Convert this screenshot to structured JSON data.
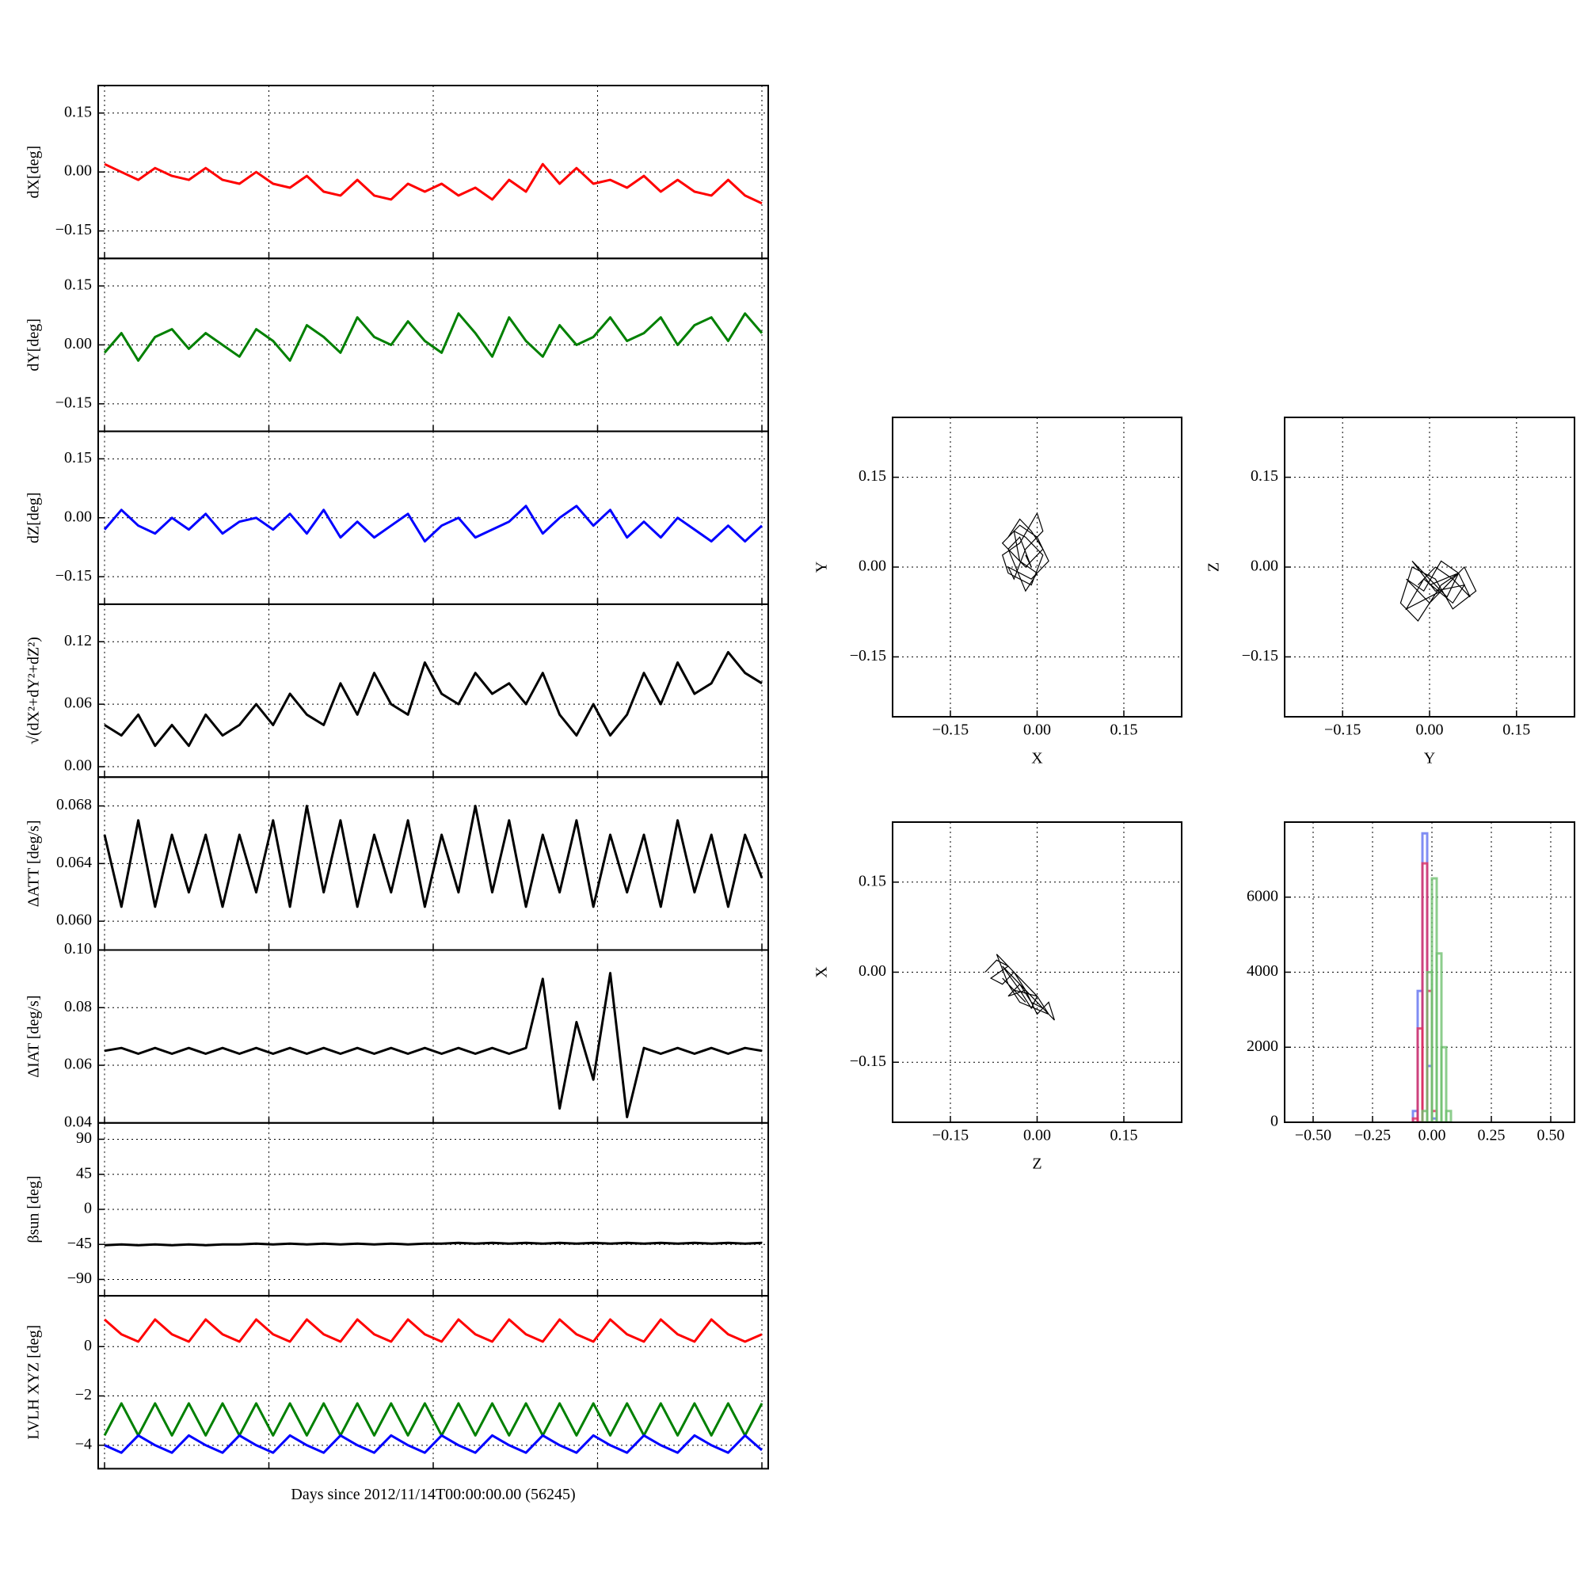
{
  "chart_data": [
    {
      "type": "line",
      "ylabel": "dX[deg]",
      "ylim": [
        -0.22,
        0.22
      ],
      "yticks": [
        {
          "value": -0.15,
          "label": "−0.15"
        },
        {
          "value": 0,
          "label": "0.00"
        },
        0.15
      ],
      "grid": true,
      "series": [
        {
          "color": "#ff0000",
          "values": [
            0.02,
            0.0,
            -0.02,
            0.01,
            -0.01,
            -0.02,
            0.01,
            -0.02,
            -0.03,
            0.0,
            -0.03,
            -0.04,
            -0.01,
            -0.05,
            -0.06,
            -0.02,
            -0.06,
            -0.07,
            -0.03,
            -0.05,
            -0.03,
            -0.06,
            -0.04,
            -0.07,
            -0.02,
            -0.05,
            0.02,
            -0.03,
            0.01,
            -0.03,
            -0.02,
            -0.04,
            -0.01,
            -0.05,
            -0.02,
            -0.05,
            -0.06,
            -0.02,
            -0.06,
            -0.08
          ]
        }
      ]
    },
    {
      "type": "line",
      "ylabel": "dY[deg]",
      "ylim": [
        -0.22,
        0.22
      ],
      "yticks": [
        {
          "value": -0.15,
          "label": "−0.15"
        },
        {
          "value": 0,
          "label": "0.00"
        },
        0.15
      ],
      "grid": true,
      "series": [
        {
          "color": "#008000",
          "values": [
            -0.02,
            0.03,
            -0.04,
            0.02,
            0.04,
            -0.01,
            0.03,
            0.0,
            -0.03,
            0.04,
            0.01,
            -0.04,
            0.05,
            0.02,
            -0.02,
            0.07,
            0.02,
            0.0,
            0.06,
            0.01,
            -0.02,
            0.08,
            0.03,
            -0.03,
            0.07,
            0.01,
            -0.03,
            0.05,
            0.0,
            0.02,
            0.07,
            0.01,
            0.03,
            0.07,
            0.0,
            0.05,
            0.07,
            0.01,
            0.08,
            0.03
          ]
        }
      ]
    },
    {
      "type": "line",
      "ylabel": "dZ[deg]",
      "ylim": [
        -0.22,
        0.22
      ],
      "yticks": [
        {
          "value": -0.15,
          "label": "−0.15"
        },
        {
          "value": 0,
          "label": "0.00"
        },
        0.15
      ],
      "grid": true,
      "series": [
        {
          "color": "#0000ff",
          "values": [
            -0.03,
            0.02,
            -0.02,
            -0.04,
            0.0,
            -0.03,
            0.01,
            -0.04,
            -0.01,
            0.0,
            -0.03,
            0.01,
            -0.04,
            0.02,
            -0.05,
            -0.01,
            -0.05,
            -0.02,
            0.01,
            -0.06,
            -0.02,
            0.0,
            -0.05,
            -0.03,
            -0.01,
            0.03,
            -0.04,
            0.0,
            0.03,
            -0.02,
            0.02,
            -0.05,
            -0.01,
            -0.05,
            0.0,
            -0.03,
            -0.06,
            -0.02,
            -0.06,
            -0.02
          ]
        }
      ]
    },
    {
      "type": "line",
      "ylabel": "√(dX²+dY²+dZ²)",
      "ylim": [
        -0.01,
        0.156
      ],
      "yticks": [
        {
          "value": 0,
          "label": "0.00"
        },
        0.06,
        0.12
      ],
      "grid": true,
      "series": [
        {
          "color": "#000000",
          "values": [
            0.04,
            0.03,
            0.05,
            0.02,
            0.04,
            0.02,
            0.05,
            0.03,
            0.04,
            0.06,
            0.04,
            0.07,
            0.05,
            0.04,
            0.08,
            0.05,
            0.09,
            0.06,
            0.05,
            0.1,
            0.07,
            0.06,
            0.09,
            0.07,
            0.08,
            0.06,
            0.09,
            0.05,
            0.03,
            0.06,
            0.03,
            0.05,
            0.09,
            0.06,
            0.1,
            0.07,
            0.08,
            0.11,
            0.09,
            0.08
          ]
        }
      ]
    },
    {
      "type": "line",
      "ylabel": "ΔATT [deg/s]",
      "ylim": [
        0.058,
        0.07
      ],
      "yticks": [
        {
          "value": 0.06,
          "label": "0.060"
        },
        0.064,
        0.068
      ],
      "grid": true,
      "series": [
        {
          "color": "#000000",
          "values": [
            0.066,
            0.061,
            0.067,
            0.061,
            0.066,
            0.062,
            0.066,
            0.061,
            0.066,
            0.062,
            0.067,
            0.061,
            0.068,
            0.062,
            0.067,
            0.061,
            0.066,
            0.062,
            0.067,
            0.061,
            0.066,
            0.062,
            0.068,
            0.062,
            0.067,
            0.061,
            0.066,
            0.062,
            0.067,
            0.061,
            0.066,
            0.062,
            0.066,
            0.061,
            0.067,
            0.062,
            0.066,
            0.061,
            0.066,
            0.063
          ]
        }
      ]
    },
    {
      "type": "line",
      "ylabel": "ΔIAT [deg/s]",
      "ylim": [
        0.04,
        0.1
      ],
      "yticks": [
        0.04,
        0.06,
        0.08,
        {
          "value": 0.1,
          "label": "0.10"
        }
      ],
      "grid": true,
      "series": [
        {
          "color": "#000000",
          "values": [
            0.065,
            0.066,
            0.064,
            0.066,
            0.064,
            0.066,
            0.064,
            0.066,
            0.064,
            0.066,
            0.064,
            0.066,
            0.064,
            0.066,
            0.064,
            0.066,
            0.064,
            0.066,
            0.064,
            0.066,
            0.064,
            0.066,
            0.064,
            0.066,
            0.064,
            0.066,
            0.09,
            0.045,
            0.075,
            0.055,
            0.092,
            0.042,
            0.066,
            0.064,
            0.066,
            0.064,
            0.066,
            0.064,
            0.066,
            0.065
          ]
        }
      ]
    },
    {
      "type": "line",
      "ylabel": "βsun [deg]",
      "ylim": [
        -111,
        111
      ],
      "yticks": [
        {
          "value": -90,
          "label": "−90"
        },
        {
          "value": -45,
          "label": "−45"
        },
        0,
        45,
        90
      ],
      "grid": true,
      "series": [
        {
          "color": "#000000",
          "values": [
            -46,
            -45,
            -46,
            -45,
            -46,
            -45,
            -46,
            -45,
            -45,
            -44,
            -45,
            -44,
            -45,
            -44,
            -45,
            -44,
            -45,
            -44,
            -45,
            -44,
            -44,
            -43,
            -44,
            -43,
            -44,
            -43,
            -44,
            -43,
            -44,
            -43,
            -44,
            -43,
            -44,
            -43,
            -44,
            -43,
            -44,
            -43,
            -44,
            -43
          ]
        }
      ]
    },
    {
      "type": "line",
      "ylabel": "LVLH XYZ [deg]",
      "xlabel": "Days since 2012/11/14T00:00:00.00 (56245)",
      "ylim": [
        -4.95,
        2.06
      ],
      "yticks": [
        {
          "value": -4,
          "label": "−4"
        },
        {
          "value": -2,
          "label": "−2"
        },
        0
      ],
      "grid": true,
      "series": [
        {
          "color": "#ff0000",
          "values": [
            1.1,
            0.5,
            0.2,
            1.1,
            0.5,
            0.2,
            1.1,
            0.5,
            0.2,
            1.1,
            0.5,
            0.2,
            1.1,
            0.5,
            0.2,
            1.1,
            0.5,
            0.2,
            1.1,
            0.5,
            0.2,
            1.1,
            0.5,
            0.2,
            1.1,
            0.5,
            0.2,
            1.1,
            0.5,
            0.2,
            1.1,
            0.5,
            0.2,
            1.1,
            0.5,
            0.2,
            1.1,
            0.5,
            0.2,
            0.5
          ]
        },
        {
          "color": "#008000",
          "values": [
            -3.6,
            -2.3,
            -3.6,
            -2.3,
            -3.6,
            -2.3,
            -3.6,
            -2.3,
            -3.6,
            -2.3,
            -3.6,
            -2.3,
            -3.6,
            -2.3,
            -3.6,
            -2.3,
            -3.6,
            -2.3,
            -3.6,
            -2.3,
            -3.6,
            -2.3,
            -3.6,
            -2.3,
            -3.6,
            -2.3,
            -3.6,
            -2.3,
            -3.6,
            -2.3,
            -3.6,
            -2.3,
            -3.6,
            -2.3,
            -3.6,
            -2.3,
            -3.6,
            -2.3,
            -3.6,
            -2.3
          ]
        },
        {
          "color": "#0000ff",
          "values": [
            -4.0,
            -4.3,
            -3.6,
            -4.0,
            -4.3,
            -3.6,
            -4.0,
            -4.3,
            -3.6,
            -4.0,
            -4.3,
            -3.6,
            -4.0,
            -4.3,
            -3.6,
            -4.0,
            -4.3,
            -3.6,
            -4.0,
            -4.3,
            -3.6,
            -4.0,
            -4.3,
            -3.6,
            -4.0,
            -4.3,
            -3.6,
            -4.0,
            -4.3,
            -3.6,
            -4.0,
            -4.3,
            -3.6,
            -4.0,
            -4.3,
            -3.6,
            -4.0,
            -4.3,
            -3.6,
            -4.2
          ]
        }
      ]
    },
    {
      "type": "scatter",
      "xlabel": "X",
      "ylabel": "Y",
      "xlim": [
        -0.25,
        0.25
      ],
      "ylim": [
        -0.25,
        0.25
      ],
      "xticks": [
        {
          "value": -0.15,
          "label": "−0.15"
        },
        {
          "value": 0,
          "label": "0.00"
        },
        0.15
      ],
      "yticks": [
        {
          "value": -0.15,
          "label": "−0.15"
        },
        {
          "value": 0,
          "label": "0.00"
        },
        0.15
      ],
      "grid": true,
      "series": [
        {
          "color": "#000000",
          "x": [
            -0.05,
            -0.03,
            -0.01,
            0.01,
            -0.02,
            -0.04,
            -0.06,
            -0.03,
            0.0,
            0.02,
            -0.01,
            -0.05,
            -0.04,
            -0.02,
            0.01,
            0.0,
            -0.03,
            -0.06,
            -0.05,
            -0.01,
            0.01,
            -0.02,
            -0.04,
            -0.03,
            0.0,
            -0.02,
            -0.05,
            -0.03,
            -0.01,
            -0.02
          ],
          "values": [
            0.05,
            0.08,
            0.06,
            0.03,
            0.0,
            0.02,
            0.04,
            0.07,
            0.05,
            0.01,
            -0.02,
            0.0,
            -0.02,
            0.03,
            0.06,
            0.09,
            0.04,
            0.02,
            -0.01,
            -0.03,
            0.02,
            0.05,
            0.06,
            0.01,
            -0.01,
            -0.04,
            0.03,
            0.05,
            0.0,
            0.02
          ]
        }
      ]
    },
    {
      "type": "scatter",
      "xlabel": "Y",
      "ylabel": "Z",
      "xlim": [
        -0.25,
        0.25
      ],
      "ylim": [
        -0.25,
        0.25
      ],
      "xticks": [
        {
          "value": -0.15,
          "label": "−0.15"
        },
        {
          "value": 0,
          "label": "0.00"
        },
        0.15
      ],
      "yticks": [
        {
          "value": -0.15,
          "label": "−0.15"
        },
        {
          "value": 0,
          "label": "0.00"
        },
        0.15
      ],
      "grid": true,
      "series": [
        {
          "color": "#000000",
          "x": [
            -0.02,
            0.01,
            0.04,
            0.07,
            0.05,
            0.02,
            -0.01,
            -0.04,
            0.0,
            0.03,
            0.06,
            0.08,
            0.04,
            0.01,
            -0.03,
            -0.05,
            -0.02,
            0.02,
            0.05,
            0.03,
            0.0,
            -0.03,
            0.01,
            0.06,
            0.04,
            -0.01,
            -0.04,
            0.02,
            0.05,
            0.0
          ],
          "values": [
            -0.03,
            0.0,
            -0.02,
            -0.05,
            -0.01,
            0.01,
            -0.04,
            -0.02,
            -0.06,
            -0.03,
            0.0,
            -0.04,
            -0.07,
            -0.02,
            0.0,
            -0.06,
            -0.09,
            -0.03,
            -0.01,
            -0.05,
            -0.02,
            0.01,
            -0.04,
            -0.03,
            -0.06,
            -0.02,
            -0.07,
            -0.04,
            -0.01,
            -0.03
          ]
        }
      ]
    },
    {
      "type": "scatter",
      "xlabel": "Z",
      "ylabel": "X",
      "xlim": [
        -0.25,
        0.25
      ],
      "ylim": [
        -0.25,
        0.25
      ],
      "xticks": [
        {
          "value": -0.15,
          "label": "−0.15"
        },
        {
          "value": 0,
          "label": "0.00"
        },
        0.15
      ],
      "yticks": [
        {
          "value": -0.15,
          "label": "−0.15"
        },
        {
          "value": 0,
          "label": "0.00"
        },
        0.15
      ],
      "grid": true,
      "series": [
        {
          "color": "#000000",
          "x": [
            -0.09,
            -0.07,
            -0.05,
            -0.08,
            -0.06,
            -0.04,
            -0.02,
            -0.05,
            -0.03,
            -0.01,
            0.01,
            -0.02,
            0.0,
            0.02,
            0.03,
            0.01,
            -0.04,
            -0.06,
            -0.03,
            -0.01,
            0.0,
            -0.02,
            -0.07,
            -0.05,
            -0.03,
            0.02,
            0.0,
            -0.04,
            -0.06,
            -0.02
          ],
          "values": [
            0.0,
            0.02,
            0.01,
            -0.01,
            -0.02,
            0.0,
            -0.03,
            -0.04,
            -0.02,
            -0.05,
            -0.06,
            -0.03,
            -0.07,
            -0.05,
            -0.08,
            -0.06,
            -0.01,
            0.01,
            -0.03,
            -0.06,
            -0.04,
            -0.02,
            0.03,
            -0.02,
            -0.05,
            -0.07,
            -0.04,
            -0.03,
            -0.01,
            -0.05
          ]
        }
      ]
    },
    {
      "type": "histogram",
      "xlim": [
        -0.62,
        0.6
      ],
      "ylim": [
        0,
        8000
      ],
      "xticks": [
        {
          "value": -0.5,
          "label": "−0.50"
        },
        {
          "value": -0.25,
          "label": "−0.25"
        },
        {
          "value": 0,
          "label": "0.00"
        },
        {
          "value": 0.25,
          "label": "0.25"
        },
        {
          "value": 0.5,
          "label": "0.50"
        }
      ],
      "yticks": [
        0,
        2000,
        4000,
        6000
      ],
      "grid": true,
      "bins": [
        -0.6,
        -0.1,
        -0.08,
        -0.06,
        -0.04,
        -0.02,
        0,
        0.02,
        0.04,
        0.06,
        0.08,
        0.1,
        0.6
      ],
      "series": [
        {
          "color": "#6070f0",
          "values": [
            0,
            0,
            300,
            3500,
            7700,
            1500,
            100,
            0,
            0,
            0,
            0,
            0
          ]
        },
        {
          "color": "#e03060",
          "values": [
            0,
            0,
            100,
            2500,
            6900,
            3500,
            300,
            0,
            0,
            0,
            0,
            0
          ]
        },
        {
          "color": "#70c070",
          "values": [
            0,
            0,
            0,
            0,
            300,
            4000,
            6500,
            4500,
            2000,
            300,
            0,
            0
          ]
        }
      ]
    }
  ]
}
